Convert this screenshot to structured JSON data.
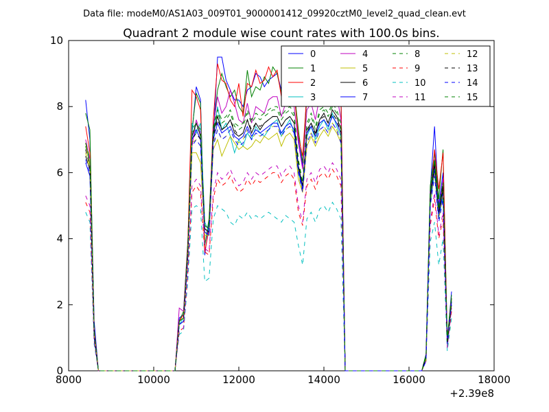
{
  "figure_header": "Data file: modeM0/AS1A03_009T01_9000001412_09920cztM0_level2_quad_clean.evt",
  "chart_data": {
    "type": "line",
    "title": "Quadrant 2 module wise count rates with 100.0s bins.",
    "xlabel": "",
    "ylabel": "",
    "x_offset_label": "+2.39e8",
    "xlim": [
      8000,
      18000
    ],
    "ylim": [
      0,
      10
    ],
    "xticks": [
      "8000",
      "10000",
      "12000",
      "14000",
      "16000",
      "18000"
    ],
    "yticks": [
      "0",
      "2",
      "4",
      "6",
      "8",
      "10"
    ],
    "grid": false,
    "legend_position": "top-right",
    "legend_columns": 4,
    "x": [
      8400,
      8500,
      8600,
      8700,
      8800,
      10400,
      10500,
      10600,
      10700,
      10800,
      10900,
      11000,
      11100,
      11200,
      11300,
      11400,
      11500,
      11600,
      11700,
      11800,
      11900,
      12000,
      12100,
      12200,
      12300,
      12400,
      12500,
      12600,
      12700,
      12800,
      12900,
      13000,
      13100,
      13200,
      13300,
      13400,
      13500,
      13600,
      13700,
      13800,
      13900,
      14000,
      14100,
      14200,
      14300,
      14400,
      14500,
      14600,
      16300,
      16400,
      16500,
      16600,
      16700,
      16800,
      16900,
      17000
    ],
    "series": [
      {
        "name": "0",
        "color": "#0000ff",
        "dash": false,
        "values": [
          8.2,
          7.0,
          1.5,
          0,
          0,
          0,
          0,
          1.6,
          1.7,
          3.8,
          7.2,
          8.6,
          8.2,
          3.5,
          4.5,
          7.0,
          9.5,
          9.5,
          8.8,
          8.5,
          8.2,
          8.2,
          8.0,
          8.5,
          8.6,
          9.0,
          8.9,
          8.6,
          8.8,
          8.9,
          9.0,
          8.5,
          8.8,
          9.0,
          8.7,
          7.0,
          6.2,
          8.5,
          9.0,
          8.6,
          9.2,
          9.4,
          9.0,
          9.5,
          9.0,
          8.5,
          0,
          0,
          0,
          0.5,
          5.5,
          7.4,
          5.0,
          6.0,
          0.9,
          2.4
        ]
      },
      {
        "name": "1",
        "color": "#008000",
        "dash": false,
        "values": [
          7.8,
          7.3,
          1.3,
          0,
          0,
          0,
          0,
          1.5,
          1.8,
          3.9,
          7.3,
          8.4,
          8.1,
          3.8,
          4.6,
          7.3,
          8.5,
          9.0,
          8.6,
          8.3,
          8.5,
          8.0,
          7.8,
          9.1,
          8.3,
          8.6,
          8.5,
          8.9,
          8.7,
          9.2,
          9.0,
          8.4,
          8.9,
          9.0,
          8.5,
          7.3,
          6.3,
          8.3,
          8.8,
          8.4,
          9.1,
          9.3,
          8.9,
          9.5,
          9.2,
          8.3,
          0,
          0,
          0,
          0.5,
          5.6,
          6.6,
          5.2,
          6.7,
          1.0,
          2.3
        ]
      },
      {
        "name": "2",
        "color": "#ff0000",
        "dash": false,
        "values": [
          7.4,
          6.6,
          1.2,
          0,
          0,
          0,
          0,
          1.5,
          1.7,
          3.8,
          8.5,
          8.3,
          7.9,
          3.6,
          4.3,
          7.6,
          9.3,
          8.8,
          8.7,
          8.2,
          8.0,
          8.7,
          7.7,
          8.7,
          8.6,
          9.1,
          8.7,
          8.8,
          9.2,
          8.9,
          9.1,
          8.3,
          8.8,
          8.6,
          8.4,
          7.1,
          6.5,
          8.4,
          8.9,
          8.5,
          8.8,
          9.0,
          9.6,
          9.6,
          8.9,
          8.4,
          0,
          0,
          0,
          0.4,
          5.2,
          6.7,
          5.5,
          6.6,
          0.9,
          2.2
        ]
      },
      {
        "name": "3",
        "color": "#00bfbf",
        "dash": false,
        "values": [
          6.9,
          6.4,
          1.1,
          0,
          0,
          0,
          0,
          1.4,
          1.6,
          3.6,
          7.5,
          7.2,
          7.5,
          4.5,
          4.2,
          7.1,
          8.0,
          7.3,
          7.5,
          7.1,
          6.6,
          7.0,
          6.8,
          7.2,
          7.0,
          7.4,
          7.2,
          7.1,
          7.3,
          7.5,
          7.6,
          7.1,
          7.4,
          7.6,
          7.2,
          6.0,
          5.5,
          7.1,
          7.4,
          7.0,
          7.4,
          7.6,
          7.3,
          7.8,
          7.4,
          7.1,
          0,
          0,
          0,
          0.3,
          5.0,
          6.0,
          4.6,
          5.3,
          0.8,
          2.0
        ]
      },
      {
        "name": "4",
        "color": "#bf00bf",
        "dash": false,
        "values": [
          7.0,
          6.4,
          1.2,
          0,
          0,
          0,
          0,
          1.9,
          1.8,
          3.7,
          6.8,
          7.6,
          7.2,
          4.3,
          4.2,
          7.4,
          8.3,
          7.8,
          8.0,
          8.5,
          8.1,
          7.6,
          7.5,
          8.1,
          7.5,
          8.0,
          7.9,
          7.8,
          8.2,
          8.3,
          8.3,
          7.7,
          8.1,
          8.2,
          8.0,
          6.9,
          6.1,
          7.9,
          8.1,
          7.6,
          8.3,
          8.3,
          8.2,
          8.5,
          8.4,
          7.6,
          0,
          0,
          0,
          0.4,
          5.4,
          6.4,
          4.9,
          5.8,
          0.9,
          2.2
        ]
      },
      {
        "name": "5",
        "color": "#bfbf00",
        "dash": false,
        "values": [
          6.9,
          6.2,
          1.1,
          0,
          0,
          0,
          0,
          1.5,
          1.6,
          3.4,
          6.6,
          6.6,
          6.3,
          4.1,
          4.1,
          6.7,
          7.0,
          6.5,
          6.8,
          7.1,
          6.9,
          6.7,
          6.8,
          6.7,
          6.8,
          7.0,
          6.9,
          7.1,
          7.0,
          7.1,
          7.2,
          6.8,
          7.1,
          7.2,
          7.0,
          5.8,
          5.4,
          6.8,
          7.1,
          6.8,
          7.1,
          7.3,
          7.1,
          7.4,
          7.2,
          6.9,
          0,
          0,
          0,
          0.3,
          5.1,
          6.2,
          4.7,
          5.5,
          0.8,
          2.0
        ]
      },
      {
        "name": "6",
        "color": "#000000",
        "dash": false,
        "values": [
          6.5,
          6.1,
          1.1,
          0,
          0,
          0,
          0,
          1.4,
          1.5,
          3.5,
          7.1,
          7.5,
          7.1,
          4.3,
          4.2,
          7.2,
          7.7,
          7.3,
          7.4,
          7.6,
          7.2,
          7.1,
          7.2,
          7.6,
          7.2,
          7.5,
          7.3,
          7.5,
          7.6,
          7.7,
          7.7,
          7.4,
          7.6,
          7.7,
          7.5,
          6.2,
          5.6,
          7.3,
          7.5,
          7.2,
          7.6,
          7.8,
          7.5,
          7.9,
          7.7,
          7.3,
          0,
          0,
          0,
          0.4,
          5.3,
          6.3,
          4.8,
          5.6,
          0.9,
          2.1
        ]
      },
      {
        "name": "7",
        "color": "#0000ff",
        "dash": false,
        "values": [
          6.3,
          5.9,
          1.0,
          0,
          0,
          0,
          0,
          1.4,
          1.5,
          3.4,
          7.0,
          7.3,
          7.0,
          4.2,
          4.1,
          7.0,
          7.5,
          7.2,
          7.3,
          7.4,
          7.1,
          7.0,
          7.1,
          7.4,
          7.1,
          7.3,
          7.2,
          7.3,
          7.4,
          7.5,
          7.5,
          7.2,
          7.4,
          7.5,
          7.3,
          6.1,
          5.5,
          7.2,
          7.4,
          7.1,
          7.5,
          7.6,
          7.4,
          7.7,
          7.5,
          7.2,
          0,
          0,
          0,
          0.3,
          5.2,
          6.1,
          4.7,
          5.4,
          0.8,
          2.1
        ]
      },
      {
        "name": "8",
        "color": "#008000",
        "dash": true,
        "values": [
          6.8,
          6.3,
          1.1,
          0,
          0,
          0,
          0,
          1.5,
          1.6,
          3.6,
          7.2,
          7.4,
          7.2,
          4.4,
          4.3,
          7.3,
          7.8,
          7.5,
          7.6,
          7.8,
          7.4,
          7.3,
          7.4,
          7.8,
          7.5,
          7.7,
          7.6,
          7.7,
          7.8,
          7.9,
          7.9,
          7.6,
          7.8,
          7.9,
          7.7,
          6.3,
          5.7,
          7.4,
          7.7,
          7.3,
          7.8,
          7.9,
          7.7,
          8.0,
          7.8,
          7.4,
          0,
          0,
          0,
          0.4,
          5.4,
          6.4,
          4.9,
          5.7,
          0.9,
          2.2
        ]
      },
      {
        "name": "9",
        "color": "#ff0000",
        "dash": true,
        "values": [
          5.1,
          4.8,
          0.9,
          0,
          0,
          0,
          0,
          1.2,
          1.3,
          2.9,
          5.4,
          5.6,
          5.4,
          3.6,
          3.5,
          5.2,
          5.8,
          5.6,
          5.7,
          5.9,
          5.6,
          5.4,
          5.5,
          5.8,
          5.6,
          5.8,
          5.7,
          5.8,
          5.9,
          6.0,
          6.0,
          5.7,
          5.9,
          6.0,
          5.8,
          4.8,
          4.4,
          5.6,
          5.8,
          5.5,
          5.9,
          6.0,
          5.8,
          6.1,
          5.9,
          5.6,
          0,
          0,
          0,
          0.3,
          4.4,
          5.2,
          4.0,
          4.6,
          0.7,
          1.8
        ]
      },
      {
        "name": "10",
        "color": "#00bfbf",
        "dash": true,
        "values": [
          4.8,
          4.5,
          0.8,
          0,
          0,
          0,
          0,
          1.1,
          1.2,
          2.7,
          4.9,
          5.0,
          4.9,
          2.7,
          2.8,
          4.6,
          5.0,
          4.9,
          4.8,
          4.5,
          4.4,
          4.7,
          4.6,
          4.8,
          4.6,
          4.7,
          4.6,
          4.7,
          4.8,
          4.7,
          4.6,
          4.5,
          4.7,
          4.6,
          4.5,
          3.8,
          3.2,
          4.6,
          4.8,
          4.5,
          4.9,
          5.0,
          4.8,
          5.1,
          4.9,
          4.6,
          0,
          0,
          0,
          0.3,
          3.9,
          4.5,
          3.2,
          4.0,
          0.6,
          1.6
        ]
      },
      {
        "name": "11",
        "color": "#bf00bf",
        "dash": true,
        "values": [
          5.3,
          5.0,
          0.9,
          0,
          0,
          0,
          0,
          1.2,
          1.3,
          3.0,
          5.6,
          5.8,
          5.6,
          3.7,
          3.6,
          5.4,
          6.0,
          5.8,
          5.9,
          6.1,
          5.8,
          5.6,
          5.7,
          6.0,
          5.8,
          6.0,
          5.9,
          6.0,
          6.1,
          6.2,
          6.2,
          5.9,
          6.1,
          6.2,
          6.0,
          5.0,
          4.5,
          5.8,
          6.0,
          5.7,
          6.1,
          6.2,
          6.0,
          6.3,
          6.1,
          5.8,
          0,
          0,
          0,
          0.3,
          4.5,
          5.4,
          4.1,
          4.8,
          0.7,
          1.9
        ]
      },
      {
        "name": "12",
        "color": "#bfbf00",
        "dash": true,
        "values": [
          6.6,
          6.1,
          1.1,
          0,
          0,
          0,
          0,
          1.4,
          1.5,
          3.4,
          6.9,
          7.0,
          6.8,
          4.2,
          4.1,
          6.9,
          7.3,
          7.0,
          7.1,
          7.3,
          7.0,
          6.9,
          7.0,
          7.3,
          7.0,
          7.2,
          7.1,
          7.2,
          7.3,
          7.4,
          7.4,
          7.1,
          7.3,
          7.4,
          7.2,
          6.0,
          5.4,
          7.0,
          7.2,
          6.9,
          7.3,
          7.4,
          7.2,
          7.5,
          7.3,
          7.0,
          0,
          0,
          0,
          0.3,
          5.1,
          6.0,
          4.6,
          5.3,
          0.8,
          2.0
        ]
      },
      {
        "name": "13",
        "color": "#000000",
        "dash": true,
        "values": [
          6.7,
          6.2,
          1.1,
          0,
          0,
          0,
          0,
          1.5,
          1.6,
          3.5,
          7.0,
          7.2,
          7.0,
          4.3,
          4.2,
          7.1,
          7.6,
          7.3,
          7.4,
          7.6,
          7.3,
          7.1,
          7.2,
          7.6,
          7.3,
          7.5,
          7.4,
          7.5,
          7.6,
          7.7,
          7.7,
          7.4,
          7.6,
          7.7,
          7.5,
          6.2,
          5.6,
          7.2,
          7.5,
          7.1,
          7.6,
          7.7,
          7.5,
          7.8,
          7.6,
          7.2,
          0,
          0,
          0,
          0.4,
          5.3,
          6.2,
          4.8,
          5.5,
          0.8,
          2.1
        ]
      },
      {
        "name": "14",
        "color": "#0000ff",
        "dash": true,
        "values": [
          6.4,
          6.0,
          1.0,
          0,
          0,
          0,
          0,
          1.4,
          1.5,
          3.4,
          6.8,
          7.0,
          6.8,
          4.2,
          4.1,
          6.8,
          7.3,
          7.0,
          7.1,
          7.3,
          7.0,
          6.8,
          6.9,
          7.3,
          7.0,
          7.2,
          7.1,
          7.2,
          7.3,
          7.4,
          7.4,
          7.1,
          7.3,
          7.4,
          7.2,
          6.0,
          5.4,
          6.9,
          7.2,
          6.9,
          7.3,
          7.4,
          7.2,
          7.5,
          7.3,
          6.9,
          0,
          0,
          0,
          0.3,
          5.0,
          5.9,
          4.5,
          5.2,
          0.8,
          2.0
        ]
      },
      {
        "name": "15",
        "color": "#008000",
        "dash": true,
        "values": [
          6.9,
          6.4,
          1.1,
          0,
          0,
          0,
          0,
          1.5,
          1.6,
          3.6,
          7.3,
          7.5,
          7.3,
          4.4,
          4.3,
          7.4,
          7.9,
          7.6,
          7.7,
          7.9,
          7.5,
          7.4,
          7.5,
          7.9,
          7.6,
          7.8,
          7.7,
          7.8,
          7.9,
          8.0,
          8.0,
          7.7,
          7.9,
          8.0,
          7.8,
          6.4,
          5.7,
          7.5,
          7.8,
          7.4,
          7.9,
          8.0,
          7.8,
          8.1,
          7.9,
          7.5,
          0,
          0,
          0,
          0.4,
          5.4,
          6.4,
          4.9,
          5.7,
          0.9,
          2.2
        ]
      }
    ]
  }
}
